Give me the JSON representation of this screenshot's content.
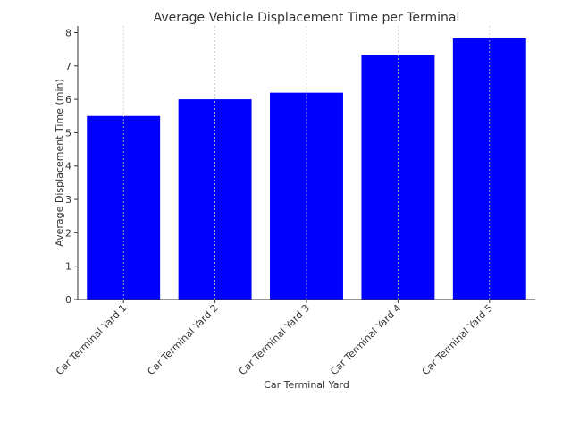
{
  "chart_data": {
    "type": "bar",
    "title": "Average Vehicle Displacement Time per Terminal",
    "xlabel": "Car Terminal Yard",
    "ylabel": "Average Displacement Time (min)",
    "categories": [
      "Car Terminal Yard 1",
      "Car Terminal Yard 2",
      "Car Terminal Yard 3",
      "Car Terminal Yard 4",
      "Car Terminal Yard 5"
    ],
    "values": [
      5.5,
      6.0,
      6.2,
      7.33,
      7.83
    ],
    "ylim": [
      0,
      8.2
    ],
    "yticks": [
      0,
      1,
      2,
      3,
      4,
      5,
      6,
      7,
      8
    ],
    "grid": "x-dotted",
    "bar_color": "#0000ff",
    "axis_color": "#333333"
  }
}
